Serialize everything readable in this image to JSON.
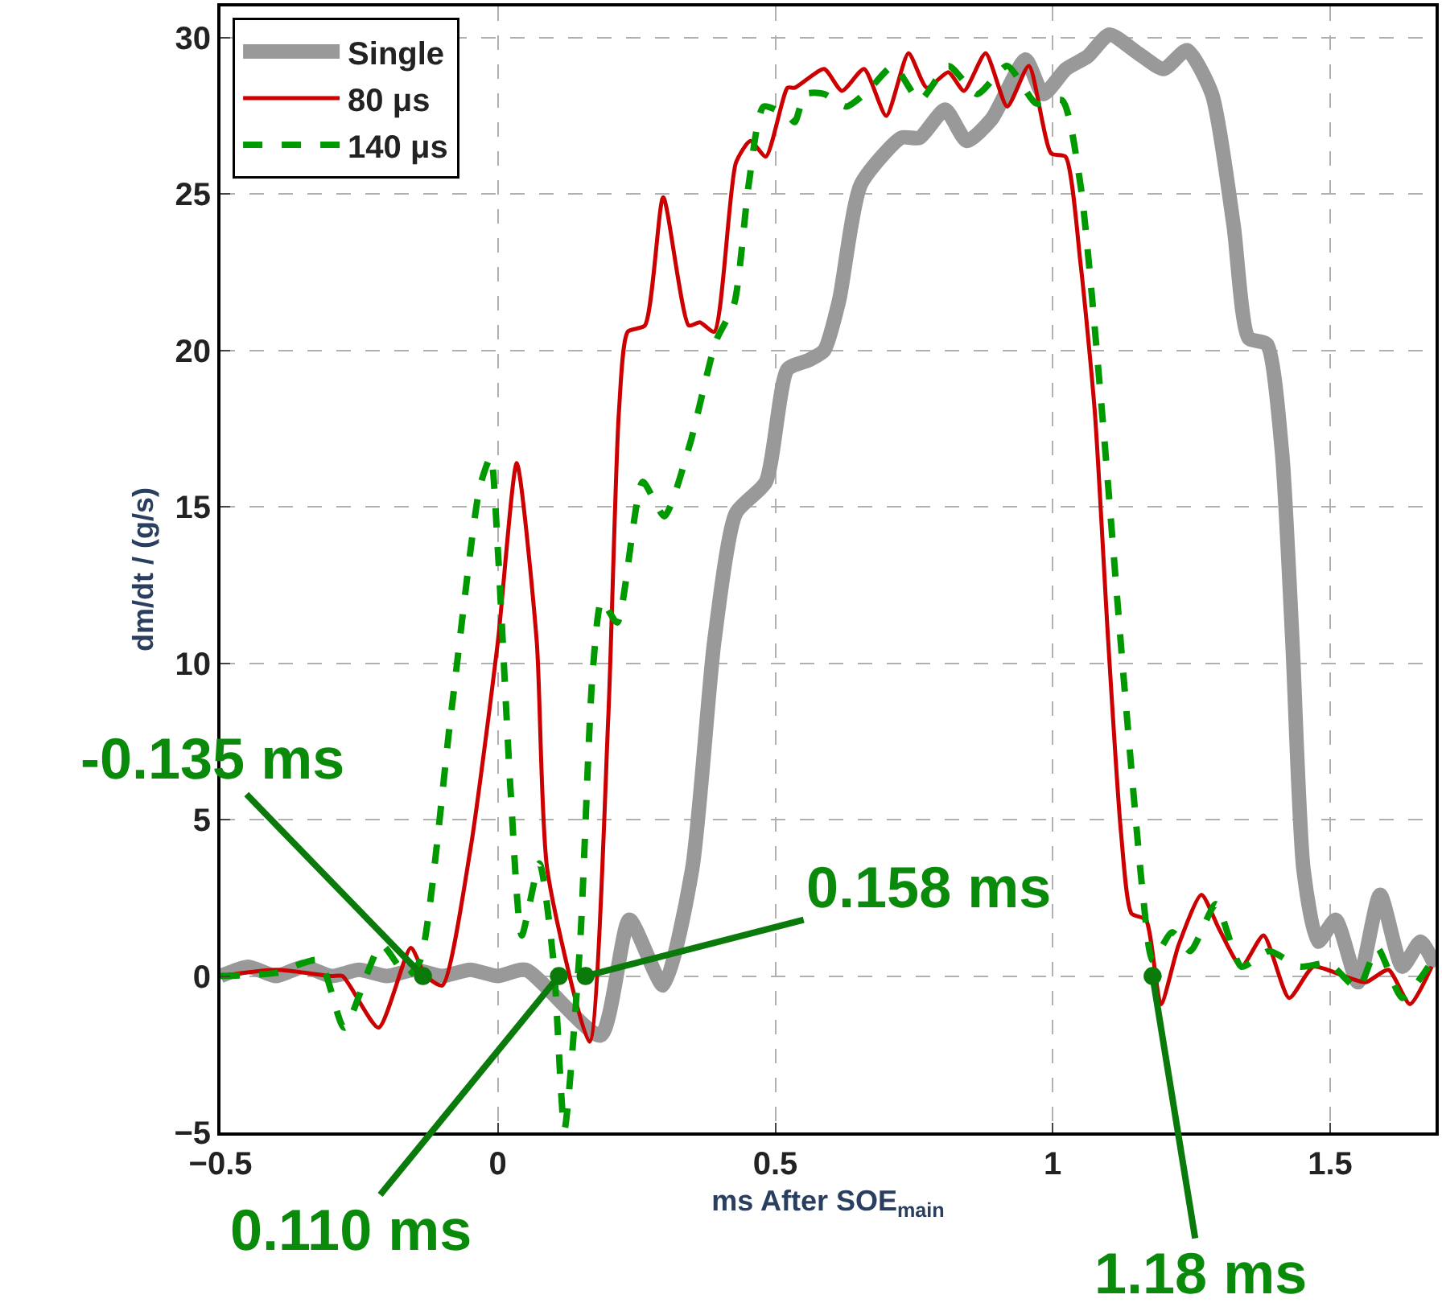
{
  "chart_data": {
    "type": "line",
    "xlabel": "ms After SOE$_{main}$",
    "ylabel": "dm/dt / (g/s)",
    "xlim": [
      -0.5,
      1.69
    ],
    "ylim": [
      -5,
      31
    ],
    "xticks": [
      -0.5,
      0,
      0.5,
      1,
      1.5
    ],
    "yticks": [
      -5,
      0,
      5,
      10,
      15,
      20,
      25,
      30
    ],
    "grid": true,
    "legend": "top left",
    "series": [
      {
        "name": "Single",
        "color": "#999999",
        "line_style": "solid",
        "x": [
          -0.5,
          -0.45,
          -0.4,
          -0.35,
          -0.3,
          -0.25,
          -0.2,
          -0.15,
          -0.1,
          -0.05,
          0,
          0.05,
          0.185,
          0.237,
          0.298,
          0.35,
          0.39,
          0.429,
          0.483,
          0.522,
          0.561,
          0.588,
          0.615,
          0.654,
          0.727,
          0.76,
          0.806,
          0.845,
          0.89,
          0.951,
          0.983,
          1.024,
          1.063,
          1.102,
          1.154,
          1.2,
          1.242,
          1.287,
          1.326,
          1.353,
          1.386,
          1.413,
          1.432,
          1.452,
          1.478,
          1.51,
          1.55,
          1.59,
          1.63,
          1.663,
          1.69
        ],
        "values": [
          0,
          0.3,
          0,
          0.3,
          0,
          0.2,
          0,
          0.2,
          0,
          0.2,
          0,
          0.2,
          -1.9,
          1.8,
          -0.3,
          3.4,
          10.7,
          14.8,
          15.8,
          19.4,
          19.7,
          20,
          21.6,
          25.3,
          26.8,
          26.8,
          27.7,
          26.7,
          27.4,
          29.3,
          28.2,
          29,
          29.4,
          30.1,
          29.5,
          29,
          29.6,
          28.2,
          24,
          20.4,
          20.2,
          16.8,
          10.7,
          3.4,
          1.1,
          1.8,
          -0.2,
          2.6,
          0.3,
          1.1,
          0.3
        ]
      },
      {
        "name": "80 μs",
        "color": "#cc0000",
        "line_style": "solid",
        "x": [
          -0.5,
          -0.4,
          -0.3,
          -0.28,
          -0.215,
          -0.157,
          -0.13,
          -0.1,
          -0.05,
          0,
          0.034,
          0.07,
          0.089,
          0.165,
          0.199,
          0.218,
          0.234,
          0.265,
          0.298,
          0.344,
          0.364,
          0.39,
          0.429,
          0.455,
          0.483,
          0.522,
          0.535,
          0.588,
          0.62,
          0.66,
          0.7,
          0.74,
          0.773,
          0.812,
          0.84,
          0.879,
          0.918,
          0.957,
          0.997,
          1.023,
          1.05,
          1.076,
          1.1,
          1.123,
          1.142,
          1.168,
          1.195,
          1.227,
          1.268,
          1.3,
          1.34,
          1.38,
          1.426,
          1.47,
          1.525,
          1.564,
          1.605,
          1.644,
          1.683
        ],
        "values": [
          0,
          0.2,
          0,
          0,
          -1.65,
          0.9,
          0,
          -0.3,
          4,
          10.7,
          16.4,
          10.7,
          3.4,
          -2.1,
          8.3,
          18,
          20.6,
          20.8,
          24.9,
          20.8,
          20.9,
          20.6,
          26,
          26.7,
          26.2,
          28.4,
          28.4,
          29,
          28.3,
          29,
          27.5,
          29.5,
          28.4,
          28.9,
          28.3,
          29.5,
          27.8,
          29.1,
          26.3,
          26.2,
          22.8,
          18,
          10.7,
          4.6,
          2,
          1.8,
          -0.9,
          1,
          2.6,
          1.5,
          0.3,
          1.3,
          -0.7,
          0.3,
          0,
          -0.2,
          0.2,
          -0.9,
          0.3
        ]
      },
      {
        "name": "140 μs",
        "color": "#009900",
        "line_style": "dashed",
        "x": [
          -0.5,
          -0.4,
          -0.323,
          -0.277,
          -0.21,
          -0.164,
          -0.14,
          -0.085,
          -0.033,
          -0.013,
          0,
          0.023,
          0.043,
          0.075,
          0.1,
          0.12,
          0.148,
          0.17,
          0.187,
          0.215,
          0.261,
          0.3,
          0.346,
          0.393,
          0.426,
          0.452,
          0.479,
          0.522,
          0.535,
          0.554,
          0.588,
          0.628,
          0.667,
          0.713,
          0.76,
          0.812,
          0.864,
          0.918,
          0.97,
          1.017,
          1.05,
          1.089,
          1.128,
          1.162,
          1.18,
          1.215,
          1.248,
          1.294,
          1.34,
          1.39,
          1.445,
          1.498,
          1.55,
          1.585,
          1.63,
          1.677
        ],
        "values": [
          0,
          0.1,
          0.5,
          -1.65,
          1,
          0,
          0.5,
          8.3,
          15.6,
          16.6,
          13.6,
          5.9,
          1.3,
          3.6,
          0.5,
          -4.9,
          1,
          9.5,
          12,
          11.3,
          15.8,
          14.7,
          17,
          20.3,
          21.5,
          25.3,
          27.8,
          27.5,
          27.3,
          28.2,
          28.2,
          27.8,
          28.3,
          29.1,
          28,
          29.1,
          28.2,
          29.1,
          27.9,
          28,
          25.3,
          18,
          9.5,
          2.7,
          0.5,
          1.4,
          0.8,
          2.3,
          0.3,
          0.8,
          0.3,
          0.4,
          -0.4,
          0.9,
          -0.7,
          0.3
        ]
      }
    ],
    "annotations": [
      {
        "text": "-0.135 ms",
        "x": -0.135,
        "y": 0
      },
      {
        "text": "0.110 ms",
        "x": 0.11,
        "y": 0
      },
      {
        "text": "0.158 ms",
        "x": 0.158,
        "y": 0
      },
      {
        "text": "1.18 ms",
        "x": 1.18,
        "y": 0
      }
    ]
  }
}
